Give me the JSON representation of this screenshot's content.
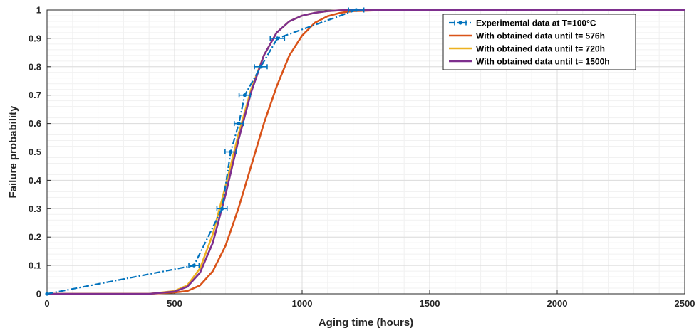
{
  "chart_data": {
    "type": "line",
    "title": "",
    "xlabel": "Aging time (hours)",
    "ylabel": "Failure probability",
    "xlim": [
      0,
      2500
    ],
    "ylim": [
      0,
      1
    ],
    "xticks": [
      "0",
      "500",
      "1000",
      "1500",
      "2000",
      "2500"
    ],
    "yticks": [
      "0",
      "0.1",
      "0.2",
      "0.3",
      "0.4",
      "0.5",
      "0.6",
      "0.7",
      "0.8",
      "0.9",
      "1"
    ],
    "grid": true,
    "minor_grid": true,
    "legend_position": "top-right",
    "series": [
      {
        "name": "Experimental data at T=100°C",
        "color": "#0072BD",
        "style": "dash-dot with horizontal error bars",
        "x": [
          0,
          576,
          686,
          720,
          752,
          775,
          838,
          903,
          1212
        ],
        "y": [
          0,
          0.1,
          0.3,
          0.5,
          0.6,
          0.7,
          0.8,
          0.9,
          1.0
        ],
        "xerr": [
          0,
          20,
          20,
          22,
          18,
          22,
          25,
          28,
          30
        ]
      },
      {
        "name": "With obtained data until t= 576h",
        "color": "#D95319",
        "x": [
          0,
          400,
          500,
          550,
          600,
          650,
          700,
          750,
          800,
          850,
          900,
          950,
          1000,
          1050,
          1100,
          1150,
          1200,
          1300,
          1400,
          1500,
          1700,
          2000,
          2500
        ],
        "y": [
          0,
          0,
          0.005,
          0.01,
          0.03,
          0.08,
          0.17,
          0.3,
          0.45,
          0.6,
          0.73,
          0.84,
          0.91,
          0.955,
          0.978,
          0.99,
          0.996,
          0.999,
          1,
          1,
          1,
          1,
          1
        ]
      },
      {
        "name": "With obtained data until t= 720h",
        "color": "#EDB120",
        "x": [
          0,
          400,
          500,
          550,
          600,
          650,
          700,
          750,
          800,
          850,
          900,
          950,
          1000,
          1050,
          1100,
          1150,
          1200,
          1300,
          1400,
          1500,
          1700,
          2000,
          2500
        ],
        "y": [
          0,
          0,
          0.01,
          0.03,
          0.09,
          0.21,
          0.38,
          0.56,
          0.72,
          0.84,
          0.92,
          0.96,
          0.98,
          0.99,
          0.996,
          0.999,
          1,
          1,
          1,
          1,
          1,
          1,
          1
        ]
      },
      {
        "name": "With obtained data until t= 1500h",
        "color": "#7E2F8E",
        "x": [
          0,
          400,
          500,
          550,
          600,
          650,
          700,
          750,
          800,
          850,
          900,
          950,
          1000,
          1050,
          1100,
          1150,
          1200,
          1300,
          1400,
          1500,
          1700,
          2000,
          2500
        ],
        "y": [
          0,
          0,
          0.008,
          0.025,
          0.075,
          0.18,
          0.35,
          0.54,
          0.71,
          0.84,
          0.92,
          0.96,
          0.98,
          0.99,
          0.996,
          0.999,
          1,
          1,
          1,
          1,
          1,
          1,
          1
        ]
      }
    ]
  }
}
